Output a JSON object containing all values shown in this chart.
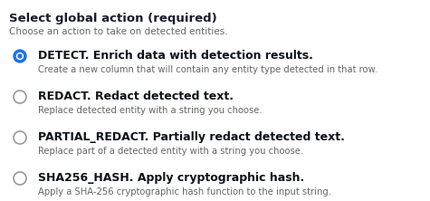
{
  "bg_color": "#ffffff",
  "title": "Select global action (required)",
  "subtitle": "Choose an action to take on detected entities.",
  "title_color": "#1a1a2e",
  "subtitle_color": "#666666",
  "title_fontsize": 9.5,
  "subtitle_fontsize": 7.5,
  "options": [
    {
      "label": "DETECT. Enrich data with detection results.",
      "description": "Create a new column that will contain any entity type detected in that row.",
      "selected": true,
      "label_fontsize": 9.0,
      "desc_fontsize": 7.2
    },
    {
      "label": "REDACT. Redact detected text.",
      "description": "Replace detected entity with a string you choose.",
      "selected": false,
      "label_fontsize": 9.0,
      "desc_fontsize": 7.2
    },
    {
      "label": "PARTIAL_REDACT. Partially redact detected text.",
      "description": "Replace part of a detected entity with a string you choose.",
      "selected": false,
      "label_fontsize": 9.0,
      "desc_fontsize": 7.2
    },
    {
      "label": "SHA256_HASH. Apply cryptographic hash.",
      "description": "Apply a SHA-256 cryptographic hash function to the input string.",
      "selected": false,
      "label_fontsize": 9.0,
      "desc_fontsize": 7.2
    }
  ],
  "radio_selected_color": "#1a73e8",
  "radio_unselected_edge": "#999999",
  "radio_unselected_fill": "#ffffff",
  "label_color": "#0d1117",
  "desc_color": "#666666",
  "fig_width": 4.75,
  "fig_height": 2.22,
  "dpi": 100
}
